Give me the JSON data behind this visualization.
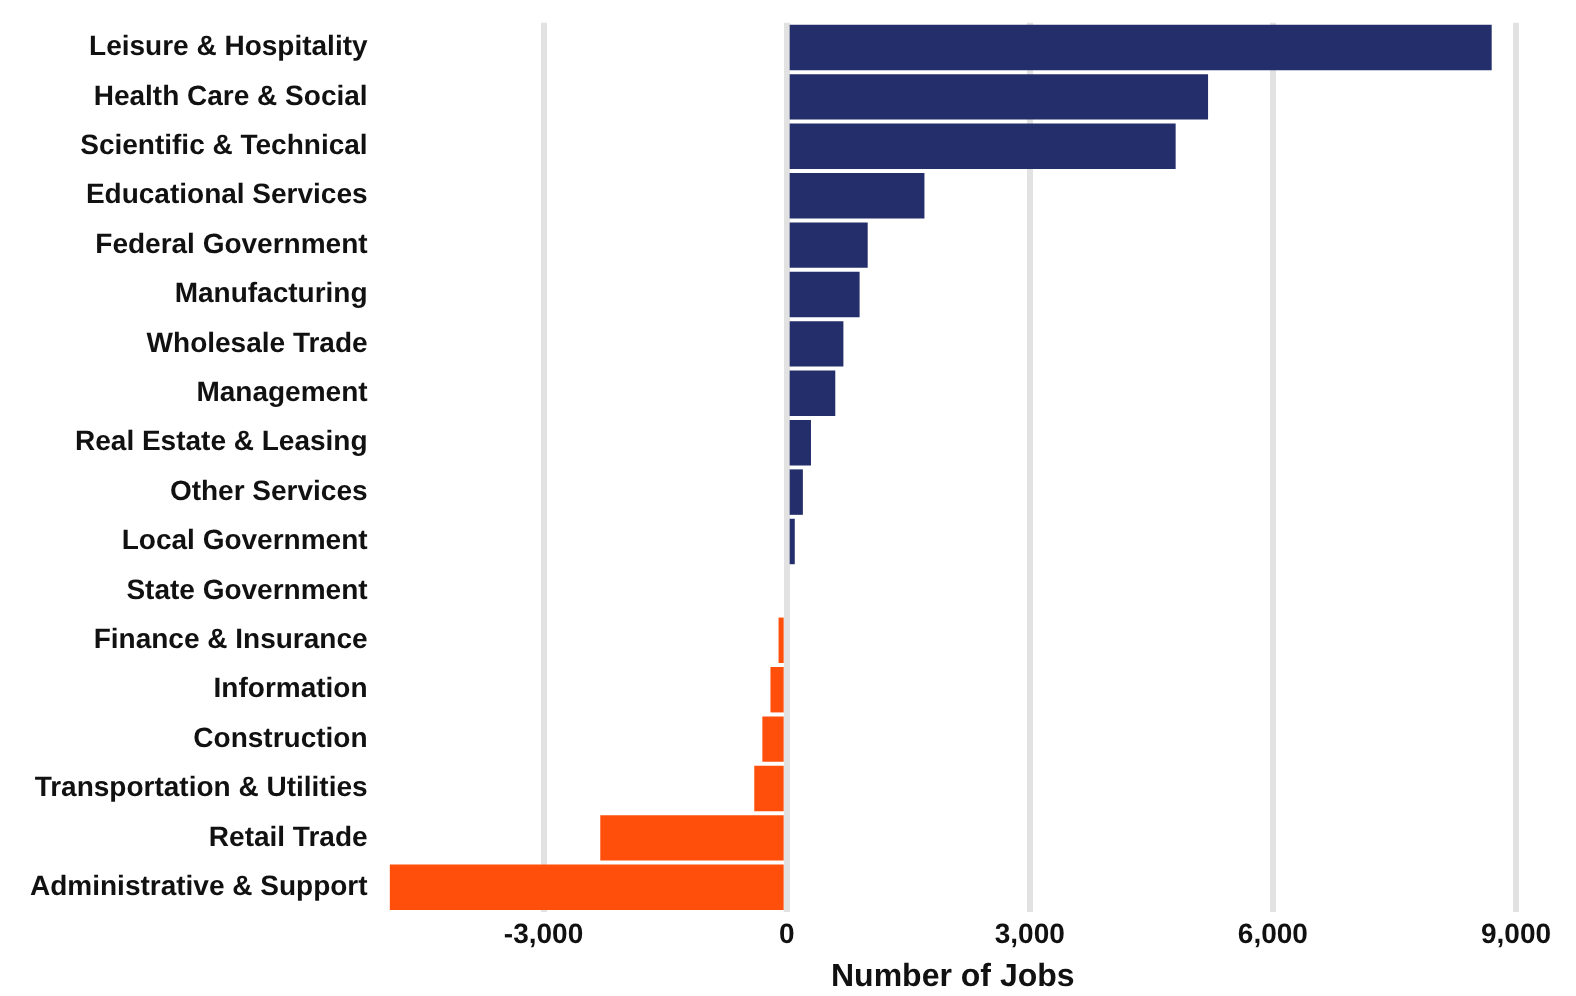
{
  "chart_data": {
    "type": "bar",
    "orientation": "horizontal",
    "xlabel": "Number of Jobs",
    "categories": [
      "Leisure & Hospitality",
      "Health Care & Social",
      "Scientific & Technical",
      "Educational Services",
      "Federal Government",
      "Manufacturing",
      "Wholesale Trade",
      "Management",
      "Real Estate & Leasing",
      "Other Services",
      "Local Government",
      "State Government",
      "Finance & Insurance",
      "Information",
      "Construction",
      "Transportation & Utilities",
      "Retail Trade",
      "Administrative & Support"
    ],
    "values": [
      8700,
      5200,
      4800,
      1700,
      1000,
      900,
      700,
      600,
      300,
      200,
      100,
      0,
      -100,
      -200,
      -300,
      -400,
      -2300,
      -4900
    ],
    "colors": [
      "#232e6b",
      "#232e6b",
      "#232e6b",
      "#232e6b",
      "#232e6b",
      "#232e6b",
      "#232e6b",
      "#232e6b",
      "#232e6b",
      "#232e6b",
      "#232e6b",
      "#232e6b",
      "#ff4f0a",
      "#ff4f0a",
      "#ff4f0a",
      "#ff4f0a",
      "#ff4f0a",
      "#ff4f0a"
    ],
    "xlim": [
      -4900,
      9000
    ],
    "xticks": [
      {
        "value": -3000,
        "label": "-3,000"
      },
      {
        "value": 0,
        "label": "0"
      },
      {
        "value": 3000,
        "label": "3,000"
      },
      {
        "value": 6000,
        "label": "6,000"
      },
      {
        "value": 9000,
        "label": "9,000"
      }
    ],
    "grid": "x",
    "legend": false
  }
}
